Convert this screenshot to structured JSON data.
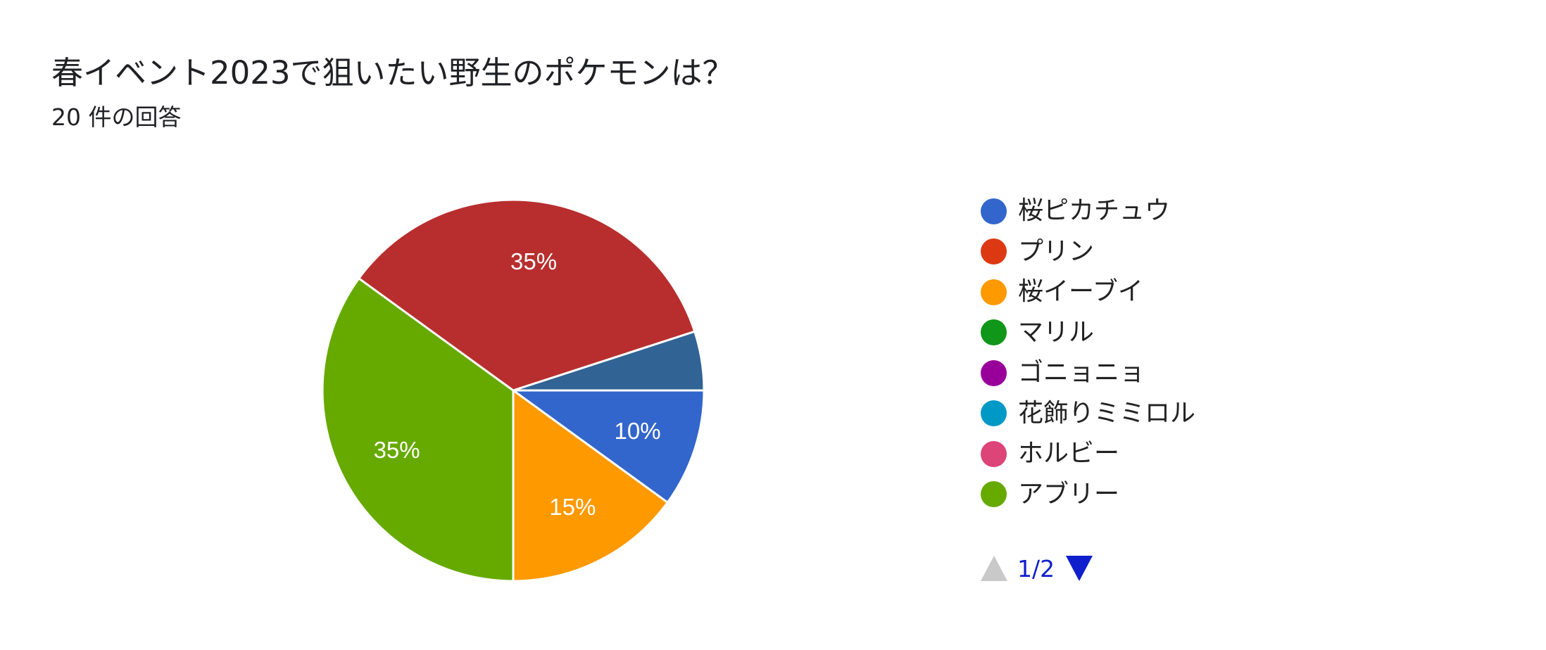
{
  "header": {
    "title": "春イベント2023で狙いたい野生のポケモンは？",
    "subtitle": "20 件の回答"
  },
  "chart_data": {
    "type": "pie",
    "title": "春イベント2023で狙いたい野生のポケモンは？",
    "total_responses": 20,
    "slices": [
      {
        "label": "桜ピカチュウ",
        "percent": 10,
        "display": "10%",
        "color": "#3366cc"
      },
      {
        "label": "プリン",
        "percent": 0,
        "display": "",
        "color": "#dc3912"
      },
      {
        "label": "桜イーブイ",
        "percent": 15,
        "display": "15%",
        "color": "#ff9900"
      },
      {
        "label": "マリル",
        "percent": 0,
        "display": "",
        "color": "#109618"
      },
      {
        "label": "ゴニョニョ",
        "percent": 0,
        "display": "",
        "color": "#990099"
      },
      {
        "label": "花飾りミミロル",
        "percent": 0,
        "display": "",
        "color": "#0099c6"
      },
      {
        "label": "ホルビー",
        "percent": 0,
        "display": "",
        "color": "#dd4477"
      },
      {
        "label": "アブリー",
        "percent": 35,
        "display": "35%",
        "color": "#66aa00"
      },
      {
        "label": "",
        "percent": 35,
        "display": "35%",
        "color": "#b82e2e"
      },
      {
        "label": "",
        "percent": 5,
        "display": "",
        "color": "#316395"
      }
    ],
    "legend_position": "right"
  },
  "legend": {
    "items": [
      {
        "label": "桜ピカチュウ",
        "color": "#3366cc"
      },
      {
        "label": "プリン",
        "color": "#dc3912"
      },
      {
        "label": "桜イーブイ",
        "color": "#ff9900"
      },
      {
        "label": "マリル",
        "color": "#109618"
      },
      {
        "label": "ゴニョニョ",
        "color": "#990099"
      },
      {
        "label": "花飾りミミロル",
        "color": "#0099c6"
      },
      {
        "label": "ホルビー",
        "color": "#dd4477"
      },
      {
        "label": "アブリー",
        "color": "#66aa00"
      }
    ],
    "pager": {
      "text": "1/2",
      "up_icon": "triangle-up-icon",
      "down_icon": "triangle-down-icon",
      "active_color": "#0f1fcc",
      "inactive_color": "#c9c9c9"
    }
  }
}
